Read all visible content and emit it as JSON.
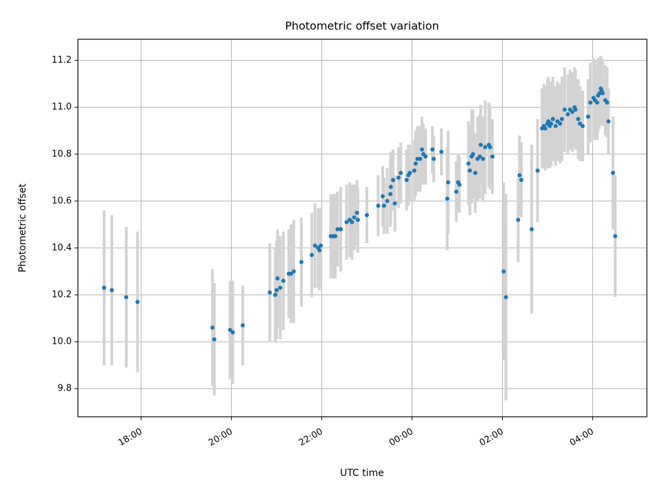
{
  "chart_data": {
    "type": "scatter",
    "title": "Photometric offset variation",
    "xlabel": "UTC time",
    "ylabel": "Photometric offset",
    "x_unit": "hours since 00:00 UTC (negative = previous day)",
    "xlim": [
      -7.4,
      5.2
    ],
    "ylim": [
      9.68,
      11.29
    ],
    "grid": true,
    "x_ticks": [
      {
        "value": -6,
        "label": "18:00"
      },
      {
        "value": -4,
        "label": "20:00"
      },
      {
        "value": -2,
        "label": "22:00"
      },
      {
        "value": 0,
        "label": "00:00"
      },
      {
        "value": 2,
        "label": "02:00"
      },
      {
        "value": 4,
        "label": "04:00"
      }
    ],
    "y_ticks": [
      {
        "value": 9.8,
        "label": "9.8"
      },
      {
        "value": 10.0,
        "label": "10.0"
      },
      {
        "value": 10.2,
        "label": "10.2"
      },
      {
        "value": 10.4,
        "label": "10.4"
      },
      {
        "value": 10.6,
        "label": "10.6"
      },
      {
        "value": 10.8,
        "label": "10.8"
      },
      {
        "value": 11.0,
        "label": "11.0"
      },
      {
        "value": 11.2,
        "label": "11.2"
      }
    ],
    "colors": {
      "point": "#1f77b4",
      "errorbar": "#d3d3d3",
      "grid": "#b0b0b0"
    },
    "points": [
      [
        -6.82,
        10.23,
        0.33
      ],
      [
        -6.65,
        10.22,
        0.32
      ],
      [
        -6.33,
        10.19,
        0.3
      ],
      [
        -6.08,
        10.17,
        0.3
      ],
      [
        -4.42,
        10.06,
        0.25
      ],
      [
        -4.38,
        10.01,
        0.24
      ],
      [
        -4.03,
        10.05,
        0.21
      ],
      [
        -3.97,
        10.04,
        0.22
      ],
      [
        -3.75,
        10.07,
        0.17
      ],
      [
        -3.15,
        10.21,
        0.21
      ],
      [
        -3.03,
        10.2,
        0.2
      ],
      [
        -3.0,
        10.22,
        0.21
      ],
      [
        -2.98,
        10.27,
        0.21
      ],
      [
        -2.92,
        10.23,
        0.22
      ],
      [
        -2.85,
        10.26,
        0.21
      ],
      [
        -2.73,
        10.29,
        0.19
      ],
      [
        -2.68,
        10.29,
        0.21
      ],
      [
        -2.62,
        10.3,
        0.22
      ],
      [
        -2.45,
        10.34,
        0.19
      ],
      [
        -2.22,
        10.37,
        0.18
      ],
      [
        -2.15,
        10.41,
        0.18
      ],
      [
        -2.08,
        10.4,
        0.17
      ],
      [
        -2.05,
        10.39,
        0.17
      ],
      [
        -2.02,
        10.41,
        0.16
      ],
      [
        -1.8,
        10.45,
        0.18
      ],
      [
        -1.75,
        10.45,
        0.18
      ],
      [
        -1.7,
        10.45,
        0.18
      ],
      [
        -1.65,
        10.48,
        0.16
      ],
      [
        -1.58,
        10.48,
        0.18
      ],
      [
        -1.45,
        10.51,
        0.16
      ],
      [
        -1.38,
        10.52,
        0.16
      ],
      [
        -1.33,
        10.51,
        0.16
      ],
      [
        -1.28,
        10.53,
        0.14
      ],
      [
        -1.22,
        10.55,
        0.14
      ],
      [
        -1.2,
        10.52,
        0.14
      ],
      [
        -1.0,
        10.54,
        0.12
      ],
      [
        -0.75,
        10.58,
        0.13
      ],
      [
        -0.65,
        10.62,
        0.13
      ],
      [
        -0.62,
        10.58,
        0.12
      ],
      [
        -0.55,
        10.6,
        0.14
      ],
      [
        -0.48,
        10.63,
        0.14
      ],
      [
        -0.47,
        10.66,
        0.15
      ],
      [
        -0.42,
        10.69,
        0.13
      ],
      [
        -0.38,
        10.59,
        0.12
      ],
      [
        -0.3,
        10.7,
        0.13
      ],
      [
        -0.25,
        10.72,
        0.13
      ],
      [
        -0.12,
        10.69,
        0.13
      ],
      [
        -0.08,
        10.71,
        0.13
      ],
      [
        -0.05,
        10.72,
        0.12
      ],
      [
        0.05,
        10.73,
        0.13
      ],
      [
        0.08,
        10.76,
        0.14
      ],
      [
        0.12,
        10.78,
        0.14
      ],
      [
        0.18,
        10.78,
        0.14
      ],
      [
        0.22,
        10.82,
        0.14
      ],
      [
        0.25,
        10.8,
        0.13
      ],
      [
        0.3,
        10.79,
        0.12
      ],
      [
        0.45,
        10.82,
        0.1
      ],
      [
        0.48,
        10.78,
        0.1
      ],
      [
        0.65,
        10.81,
        0.1
      ],
      [
        0.78,
        10.61,
        0.22
      ],
      [
        0.8,
        10.68,
        0.22
      ],
      [
        0.98,
        10.64,
        0.13
      ],
      [
        1.02,
        10.68,
        0.12
      ],
      [
        1.05,
        10.67,
        0.12
      ],
      [
        1.25,
        10.76,
        0.18
      ],
      [
        1.28,
        10.73,
        0.19
      ],
      [
        1.32,
        10.79,
        0.2
      ],
      [
        1.35,
        10.8,
        0.19
      ],
      [
        1.4,
        10.72,
        0.17
      ],
      [
        1.45,
        10.78,
        0.18
      ],
      [
        1.5,
        10.79,
        0.18
      ],
      [
        1.52,
        10.84,
        0.17
      ],
      [
        1.57,
        10.78,
        0.18
      ],
      [
        1.62,
        10.83,
        0.2
      ],
      [
        1.7,
        10.84,
        0.18
      ],
      [
        1.73,
        10.83,
        0.18
      ],
      [
        1.78,
        10.79,
        0.16
      ],
      [
        2.03,
        10.3,
        0.38
      ],
      [
        2.08,
        10.19,
        0.44
      ],
      [
        2.35,
        10.52,
        0.18
      ],
      [
        2.38,
        10.71,
        0.17
      ],
      [
        2.42,
        10.69,
        0.16
      ],
      [
        2.65,
        10.48,
        0.36
      ],
      [
        2.78,
        10.73,
        0.22
      ],
      [
        2.88,
        10.91,
        0.17
      ],
      [
        2.92,
        10.92,
        0.18
      ],
      [
        2.95,
        10.91,
        0.18
      ],
      [
        3.0,
        10.93,
        0.19
      ],
      [
        3.02,
        10.94,
        0.19
      ],
      [
        3.05,
        10.92,
        0.18
      ],
      [
        3.08,
        10.93,
        0.18
      ],
      [
        3.12,
        10.95,
        0.18
      ],
      [
        3.18,
        10.92,
        0.17
      ],
      [
        3.22,
        10.94,
        0.17
      ],
      [
        3.28,
        10.93,
        0.17
      ],
      [
        3.32,
        10.95,
        0.18
      ],
      [
        3.38,
        10.99,
        0.18
      ],
      [
        3.45,
        10.97,
        0.17
      ],
      [
        3.5,
        10.99,
        0.17
      ],
      [
        3.55,
        10.98,
        0.17
      ],
      [
        3.6,
        11.0,
        0.17
      ],
      [
        3.62,
        10.99,
        0.17
      ],
      [
        3.68,
        10.95,
        0.17
      ],
      [
        3.72,
        10.93,
        0.16
      ],
      [
        3.78,
        10.92,
        0.15
      ],
      [
        3.9,
        10.96,
        0.16
      ],
      [
        3.95,
        11.02,
        0.17
      ],
      [
        4.02,
        11.04,
        0.17
      ],
      [
        4.05,
        11.03,
        0.17
      ],
      [
        4.1,
        11.02,
        0.16
      ],
      [
        4.12,
        11.05,
        0.16
      ],
      [
        4.15,
        11.06,
        0.15
      ],
      [
        4.18,
        11.08,
        0.14
      ],
      [
        4.2,
        11.07,
        0.14
      ],
      [
        4.22,
        11.06,
        0.14
      ],
      [
        4.28,
        11.03,
        0.15
      ],
      [
        4.32,
        11.02,
        0.15
      ],
      [
        4.35,
        10.94,
        0.14
      ],
      [
        4.45,
        10.72,
        0.24
      ],
      [
        4.5,
        10.45,
        0.26
      ]
    ]
  }
}
